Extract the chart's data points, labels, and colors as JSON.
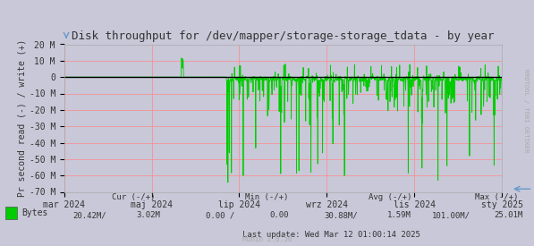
{
  "title": "Disk throughput for /dev/mapper/storage-storage_tdata - by year",
  "ylabel": "Pr second read (-) / write (+)",
  "bg_color": "#e8e8f0",
  "plot_bg_color": "#c8c8d8",
  "grid_color": "#ff9999",
  "line_color": "#00cc00",
  "zero_line_color": "#000000",
  "ylim": [
    -70,
    20
  ],
  "yticks": [
    -70,
    -60,
    -50,
    -40,
    -30,
    -20,
    -10,
    0,
    10,
    20
  ],
  "ytick_labels": [
    "-70 M",
    "-60 M",
    "-50 M",
    "-40 M",
    "-30 M",
    "-20 M",
    "-10 M",
    "0",
    "10 M",
    "20 M"
  ],
  "xtick_labels": [
    "mar 2024",
    "maj 2024",
    "lip 2024",
    "wrz 2024",
    "lis 2024",
    "sty 2025"
  ],
  "legend_label": "Bytes",
  "legend_color": "#00cc00",
  "cur_neg": "20.42M/",
  "cur_pos": "3.02M",
  "min_neg": "0.00 /",
  "min_pos": "0.00",
  "avg_neg": "30.88M/",
  "avg_pos": "1.59M",
  "max_neg": "101.00M/",
  "max_pos": "25.01M",
  "last_update": "Last update: Wed Mar 12 01:00:14 2025",
  "munin_version": "Munin 2.0.56",
  "rrdtool_text": "RRDTOOL / TOBI OETIKER",
  "title_color": "#333333",
  "axis_color": "#333333",
  "font_mono": "DejaVu Sans Mono"
}
